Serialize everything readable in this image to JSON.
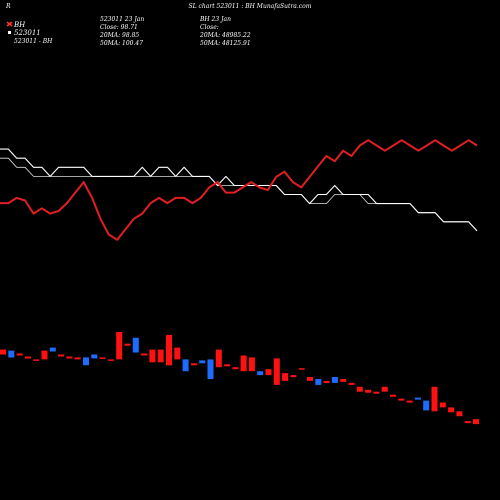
{
  "header": {
    "title": "SL chart 523011 : BH MunafaSutra.com",
    "left_letter": "R"
  },
  "legend": {
    "symbol1": "BH",
    "code1": "523011",
    "code2": "523011 - BH"
  },
  "info_left": {
    "line1": "523011 23 Jan",
    "line2": "Close: 98.71",
    "line3": "20MA: 98.85",
    "line4": "50MA: 100.47"
  },
  "info_right": {
    "line1": "BH 23 Jan",
    "line2": "Close:",
    "line3": "20MA: 48985.22",
    "line4": "50MA: 48125.91"
  },
  "colors": {
    "background": "#000000",
    "up": "#1e6cff",
    "down": "#ff1111",
    "price_line": "#ffffff",
    "ma_line": "#dddddd",
    "index_line": "#e02020"
  },
  "chart_data": {
    "type": "line",
    "title": "SL chart 523011 : BH MunafaSutra.com",
    "x": [
      1,
      2,
      3,
      4,
      5,
      6,
      7,
      8,
      9,
      10,
      11,
      12,
      13,
      14,
      15,
      16,
      17,
      18,
      19,
      20,
      21,
      22,
      23,
      24,
      25,
      26,
      27,
      28,
      29,
      30,
      31,
      32,
      33,
      34,
      35,
      36,
      37,
      38,
      39,
      40,
      41,
      42,
      43,
      44,
      45,
      46,
      47,
      48,
      49,
      50,
      51,
      52,
      53,
      54,
      55,
      56,
      57,
      58
    ],
    "series": [
      {
        "name": "Close",
        "values": [
          106,
          106,
          105,
          105,
          104,
          104,
          103,
          104,
          104,
          104,
          104,
          103,
          103,
          103,
          103,
          103,
          103,
          104,
          103,
          104,
          104,
          103,
          104,
          103,
          103,
          103,
          102,
          103,
          102,
          102,
          102,
          102,
          102,
          102,
          101,
          101,
          101,
          100,
          101,
          101,
          102,
          101,
          101,
          101,
          101,
          100,
          100,
          100,
          100,
          100,
          99,
          99,
          99,
          98,
          98,
          98,
          98,
          97
        ]
      },
      {
        "name": "MA",
        "values": [
          105,
          105,
          104,
          104,
          103,
          103,
          103,
          103,
          103,
          103,
          103,
          103,
          103,
          103,
          103,
          103,
          103,
          103,
          103,
          103,
          103,
          103,
          103,
          103,
          103,
          103,
          102,
          102,
          102,
          102,
          102,
          102,
          102,
          102,
          101,
          101,
          101,
          100,
          100,
          100,
          101,
          101,
          101,
          101,
          100,
          100,
          100,
          100,
          100,
          100,
          99,
          99,
          99,
          98,
          98,
          98,
          98,
          97
        ]
      },
      {
        "name": "BH",
        "values": [
          49200,
          49200,
          49300,
          49250,
          49000,
          49100,
          49000,
          49050,
          49200,
          49400,
          49600,
          49300,
          48900,
          48600,
          48500,
          48700,
          48900,
          49000,
          49200,
          49300,
          49200,
          49300,
          49300,
          49200,
          49300,
          49500,
          49600,
          49400,
          49400,
          49500,
          49600,
          49500,
          49450,
          49700,
          49800,
          49600,
          49500,
          49700,
          49900,
          50100,
          50000,
          50200,
          50100,
          50300,
          50400,
          50300,
          50200,
          50300,
          50400,
          50300,
          50200,
          50300,
          50400,
          50300,
          50200,
          50300,
          50400,
          50300
        ]
      }
    ],
    "candles": [
      {
        "dir": "down",
        "o": 106.0,
        "c": 105.5
      },
      {
        "dir": "up",
        "o": 105.2,
        "c": 105.9
      },
      {
        "dir": "down",
        "o": 105.6,
        "c": 105.4
      },
      {
        "dir": "down",
        "o": 105.3,
        "c": 105.1
      },
      {
        "dir": "down",
        "o": 105.0,
        "c": 104.9
      },
      {
        "dir": "down",
        "o": 105.9,
        "c": 105.0
      },
      {
        "dir": "up",
        "o": 105.8,
        "c": 106.2
      },
      {
        "dir": "down",
        "o": 105.5,
        "c": 105.3
      },
      {
        "dir": "down",
        "o": 105.3,
        "c": 105.1
      },
      {
        "dir": "down",
        "o": 105.2,
        "c": 105.0
      },
      {
        "dir": "up",
        "o": 104.4,
        "c": 105.2
      },
      {
        "dir": "up",
        "o": 105.1,
        "c": 105.5
      },
      {
        "dir": "down",
        "o": 105.2,
        "c": 105.1
      },
      {
        "dir": "down",
        "o": 105.0,
        "c": 104.9
      },
      {
        "dir": "down",
        "o": 107.8,
        "c": 105.0
      },
      {
        "dir": "down",
        "o": 106.6,
        "c": 106.4
      },
      {
        "dir": "up",
        "o": 105.7,
        "c": 107.2
      },
      {
        "dir": "down",
        "o": 105.6,
        "c": 105.4
      },
      {
        "dir": "down",
        "o": 106.0,
        "c": 104.7
      },
      {
        "dir": "down",
        "o": 106.0,
        "c": 104.7
      },
      {
        "dir": "down",
        "o": 107.5,
        "c": 104.4
      },
      {
        "dir": "down",
        "o": 106.2,
        "c": 105.0
      },
      {
        "dir": "up",
        "o": 103.8,
        "c": 105.0
      },
      {
        "dir": "down",
        "o": 104.6,
        "c": 104.4
      },
      {
        "dir": "up",
        "o": 104.6,
        "c": 104.9
      },
      {
        "dir": "up",
        "o": 103.0,
        "c": 105.0
      },
      {
        "dir": "down",
        "o": 106.0,
        "c": 104.2
      },
      {
        "dir": "down",
        "o": 104.5,
        "c": 104.3
      },
      {
        "dir": "down",
        "o": 104.2,
        "c": 104.0
      },
      {
        "dir": "down",
        "o": 105.4,
        "c": 103.8
      },
      {
        "dir": "down",
        "o": 105.2,
        "c": 103.8
      },
      {
        "dir": "up",
        "o": 103.4,
        "c": 103.8
      },
      {
        "dir": "down",
        "o": 104.0,
        "c": 103.4
      },
      {
        "dir": "down",
        "o": 105.1,
        "c": 102.4
      },
      {
        "dir": "down",
        "o": 103.6,
        "c": 102.8
      },
      {
        "dir": "down",
        "o": 103.4,
        "c": 103.2
      },
      {
        "dir": "down",
        "o": 104.1,
        "c": 104.0
      },
      {
        "dir": "down",
        "o": 103.2,
        "c": 102.8
      },
      {
        "dir": "up",
        "o": 102.4,
        "c": 103.0
      },
      {
        "dir": "down",
        "o": 102.8,
        "c": 102.6
      },
      {
        "dir": "up",
        "o": 102.6,
        "c": 103.2
      },
      {
        "dir": "down",
        "o": 103.0,
        "c": 102.7
      },
      {
        "dir": "down",
        "o": 102.6,
        "c": 102.4
      },
      {
        "dir": "down",
        "o": 102.2,
        "c": 101.7
      },
      {
        "dir": "down",
        "o": 101.9,
        "c": 101.6
      },
      {
        "dir": "down",
        "o": 101.7,
        "c": 101.5
      },
      {
        "dir": "down",
        "o": 102.2,
        "c": 101.7
      },
      {
        "dir": "down",
        "o": 101.4,
        "c": 101.2
      },
      {
        "dir": "down",
        "o": 101.0,
        "c": 100.8
      },
      {
        "dir": "down",
        "o": 100.8,
        "c": 100.6
      },
      {
        "dir": "up",
        "o": 100.9,
        "c": 101.1
      },
      {
        "dir": "up",
        "o": 99.8,
        "c": 100.8
      },
      {
        "dir": "down",
        "o": 102.2,
        "c": 99.7
      },
      {
        "dir": "down",
        "o": 100.6,
        "c": 100.1
      },
      {
        "dir": "down",
        "o": 100.1,
        "c": 99.6
      },
      {
        "dir": "down",
        "o": 99.7,
        "c": 99.2
      },
      {
        "dir": "down",
        "o": 98.7,
        "c": 98.5
      },
      {
        "dir": "down",
        "o": 98.9,
        "c": 98.4
      }
    ]
  }
}
